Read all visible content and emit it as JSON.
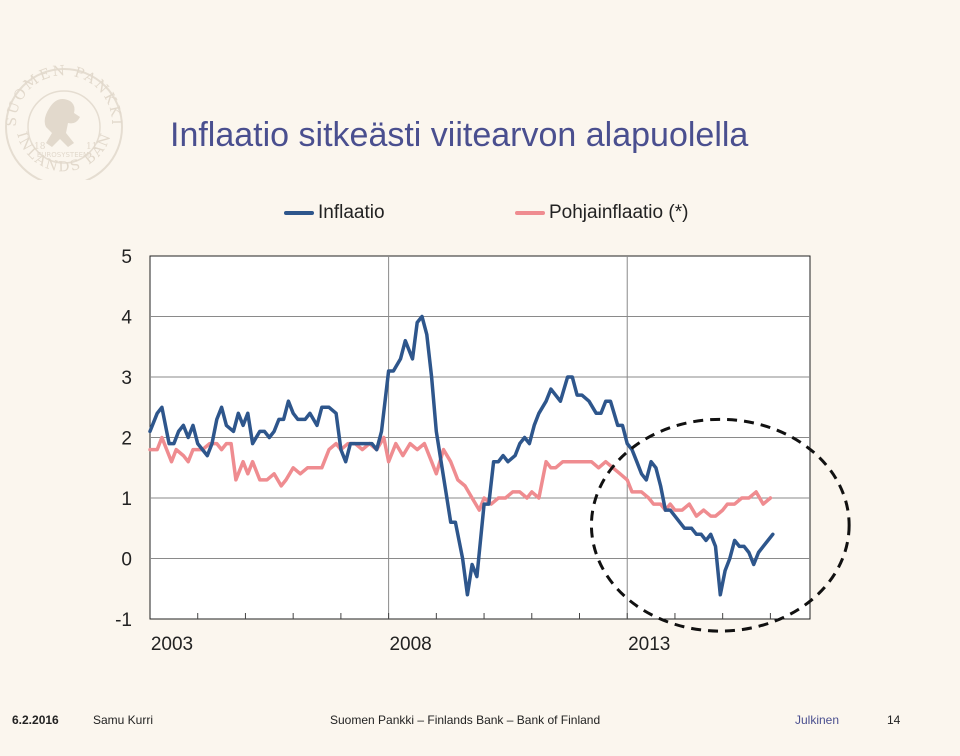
{
  "header": {
    "title": "Inflaatio sitkeästi viitearvon alapuolella"
  },
  "logo": {
    "icon": "seal-lion-icon",
    "text_top": "SUOMEN PANKKI",
    "text_bottom": "FINLANDS BANK",
    "text_mid": "EUROSYSTEEMI",
    "year_left": "18",
    "year_right": "11"
  },
  "chart_data": {
    "type": "line",
    "title": "",
    "xlabel": "",
    "ylabel": "",
    "ylim": [
      -1,
      5
    ],
    "yticks": [
      "5",
      "4",
      "3",
      "2",
      "1",
      "0",
      "-1"
    ],
    "xticks": [
      {
        "label": "2003",
        "x": 2003
      },
      {
        "label": "2008",
        "x": 2008
      },
      {
        "label": "2013",
        "x": 2013
      }
    ],
    "xlim": [
      2003,
      2016.83
    ],
    "grid": "horizontal lines at each unit; vertical lines at 2008 and 2013",
    "legend_position": "top",
    "series": [
      {
        "name": "Inflaatio",
        "color": "#2e568c",
        "x": [
          2003.0,
          2003.15,
          2003.25,
          2003.4,
          2003.5,
          2003.6,
          2003.7,
          2003.8,
          2003.9,
          2004.0,
          2004.1,
          2004.2,
          2004.3,
          2004.4,
          2004.5,
          2004.6,
          2004.75,
          2004.85,
          2004.95,
          2005.05,
          2005.15,
          2005.3,
          2005.4,
          2005.5,
          2005.6,
          2005.7,
          2005.8,
          2005.9,
          2006.0,
          2006.1,
          2006.25,
          2006.35,
          2006.5,
          2006.6,
          2006.75,
          2006.9,
          2007.0,
          2007.1,
          2007.2,
          2007.35,
          2007.5,
          2007.65,
          2007.75,
          2007.85,
          2008.0,
          2008.1,
          2008.25,
          2008.35,
          2008.5,
          2008.6,
          2008.7,
          2008.8,
          2008.9,
          2009.0,
          2009.1,
          2009.2,
          2009.3,
          2009.4,
          2009.55,
          2009.65,
          2009.75,
          2009.85,
          2010.0,
          2010.1,
          2010.2,
          2010.3,
          2010.4,
          2010.5,
          2010.65,
          2010.75,
          2010.85,
          2010.95,
          2011.05,
          2011.15,
          2011.3,
          2011.4,
          2011.5,
          2011.6,
          2011.75,
          2011.85,
          2011.95,
          2012.05,
          2012.2,
          2012.35,
          2012.45,
          2012.55,
          2012.65,
          2012.8,
          2012.9,
          2013.0,
          2013.1,
          2013.2,
          2013.3,
          2013.4,
          2013.5,
          2013.6,
          2013.7,
          2013.8,
          2013.9,
          2014.0,
          2014.1,
          2014.2,
          2014.35,
          2014.45,
          2014.55,
          2014.65,
          2014.75,
          2014.85,
          2014.95,
          2015.05,
          2015.15,
          2015.25,
          2015.35,
          2015.45,
          2015.55,
          2015.65,
          2015.75,
          2015.85,
          2015.95,
          2016.05
        ],
        "values": [
          2.1,
          2.4,
          2.5,
          1.9,
          1.9,
          2.1,
          2.2,
          2.0,
          2.2,
          1.9,
          1.8,
          1.7,
          1.9,
          2.3,
          2.5,
          2.2,
          2.1,
          2.4,
          2.2,
          2.4,
          1.9,
          2.1,
          2.1,
          2.0,
          2.1,
          2.3,
          2.3,
          2.6,
          2.4,
          2.3,
          2.3,
          2.4,
          2.2,
          2.5,
          2.5,
          2.4,
          1.8,
          1.6,
          1.9,
          1.9,
          1.9,
          1.9,
          1.8,
          2.1,
          3.1,
          3.1,
          3.3,
          3.6,
          3.3,
          3.9,
          4.0,
          3.7,
          3.0,
          2.1,
          1.6,
          1.1,
          0.6,
          0.6,
          0.0,
          -0.6,
          -0.1,
          -0.3,
          0.9,
          0.9,
          1.6,
          1.6,
          1.7,
          1.6,
          1.7,
          1.9,
          2.0,
          1.9,
          2.2,
          2.4,
          2.6,
          2.8,
          2.7,
          2.6,
          3.0,
          3.0,
          2.7,
          2.7,
          2.6,
          2.4,
          2.4,
          2.6,
          2.6,
          2.2,
          2.2,
          1.9,
          1.8,
          1.6,
          1.4,
          1.3,
          1.6,
          1.5,
          1.2,
          0.8,
          0.8,
          0.7,
          0.6,
          0.5,
          0.5,
          0.4,
          0.4,
          0.3,
          0.4,
          0.2,
          -0.6,
          -0.2,
          0.0,
          0.3,
          0.2,
          0.2,
          0.1,
          -0.1,
          0.1,
          0.2,
          0.3,
          0.4
        ]
      },
      {
        "name": "Pohjainflaatio (*)",
        "color": "#ef8c90",
        "x": [
          2003.0,
          2003.15,
          2003.25,
          2003.35,
          2003.45,
          2003.55,
          2003.7,
          2003.8,
          2003.9,
          2004.0,
          2004.1,
          2004.25,
          2004.4,
          2004.5,
          2004.6,
          2004.7,
          2004.8,
          2004.95,
          2005.05,
          2005.15,
          2005.3,
          2005.45,
          2005.6,
          2005.75,
          2005.85,
          2006.0,
          2006.15,
          2006.3,
          2006.45,
          2006.6,
          2006.75,
          2006.9,
          2007.0,
          2007.15,
          2007.3,
          2007.45,
          2007.6,
          2007.75,
          2007.9,
          2008.0,
          2008.15,
          2008.3,
          2008.45,
          2008.6,
          2008.75,
          2008.9,
          2009.0,
          2009.15,
          2009.3,
          2009.45,
          2009.6,
          2009.75,
          2009.9,
          2010.0,
          2010.15,
          2010.3,
          2010.45,
          2010.6,
          2010.75,
          2010.9,
          2011.0,
          2011.15,
          2011.3,
          2011.4,
          2011.5,
          2011.65,
          2011.8,
          2011.95,
          2012.1,
          2012.25,
          2012.4,
          2012.55,
          2012.7,
          2012.85,
          2013.0,
          2013.1,
          2013.2,
          2013.3,
          2013.45,
          2013.55,
          2013.7,
          2013.8,
          2013.9,
          2014.0,
          2014.15,
          2014.3,
          2014.45,
          2014.6,
          2014.75,
          2014.85,
          2015.0,
          2015.1,
          2015.25,
          2015.4,
          2015.55,
          2015.7,
          2015.85,
          2016.0
        ],
        "values": [
          1.8,
          1.8,
          2.0,
          1.8,
          1.6,
          1.8,
          1.7,
          1.6,
          1.8,
          1.8,
          1.8,
          1.9,
          1.9,
          1.8,
          1.9,
          1.9,
          1.3,
          1.6,
          1.4,
          1.6,
          1.3,
          1.3,
          1.4,
          1.2,
          1.3,
          1.5,
          1.4,
          1.5,
          1.5,
          1.5,
          1.8,
          1.9,
          1.8,
          1.9,
          1.9,
          1.8,
          1.9,
          1.8,
          2.0,
          1.6,
          1.9,
          1.7,
          1.9,
          1.8,
          1.9,
          1.6,
          1.4,
          1.8,
          1.6,
          1.3,
          1.2,
          1.0,
          0.8,
          1.0,
          0.9,
          1.0,
          1.0,
          1.1,
          1.1,
          1.0,
          1.1,
          1.0,
          1.6,
          1.5,
          1.5,
          1.6,
          1.6,
          1.6,
          1.6,
          1.6,
          1.5,
          1.6,
          1.5,
          1.4,
          1.3,
          1.1,
          1.1,
          1.1,
          1.0,
          0.9,
          0.9,
          0.8,
          0.9,
          0.8,
          0.8,
          0.9,
          0.7,
          0.8,
          0.7,
          0.7,
          0.8,
          0.9,
          0.9,
          1.0,
          1.0,
          1.1,
          0.9,
          1.0
        ]
      }
    ],
    "annotation": {
      "shape": "dashed-circle",
      "center": {
        "x": 2014.95,
        "y": 0.55
      },
      "radius_x_years": 2.7,
      "radius_y_units": 1.75
    }
  },
  "footer": {
    "date": "6.2.2016",
    "author": "Samu Kurri",
    "org": "Suomen Pankki – Finlands Bank – Bank of Finland",
    "classification": "Julkinen",
    "page": "14",
    "classification_color": "#4a4f8f"
  }
}
